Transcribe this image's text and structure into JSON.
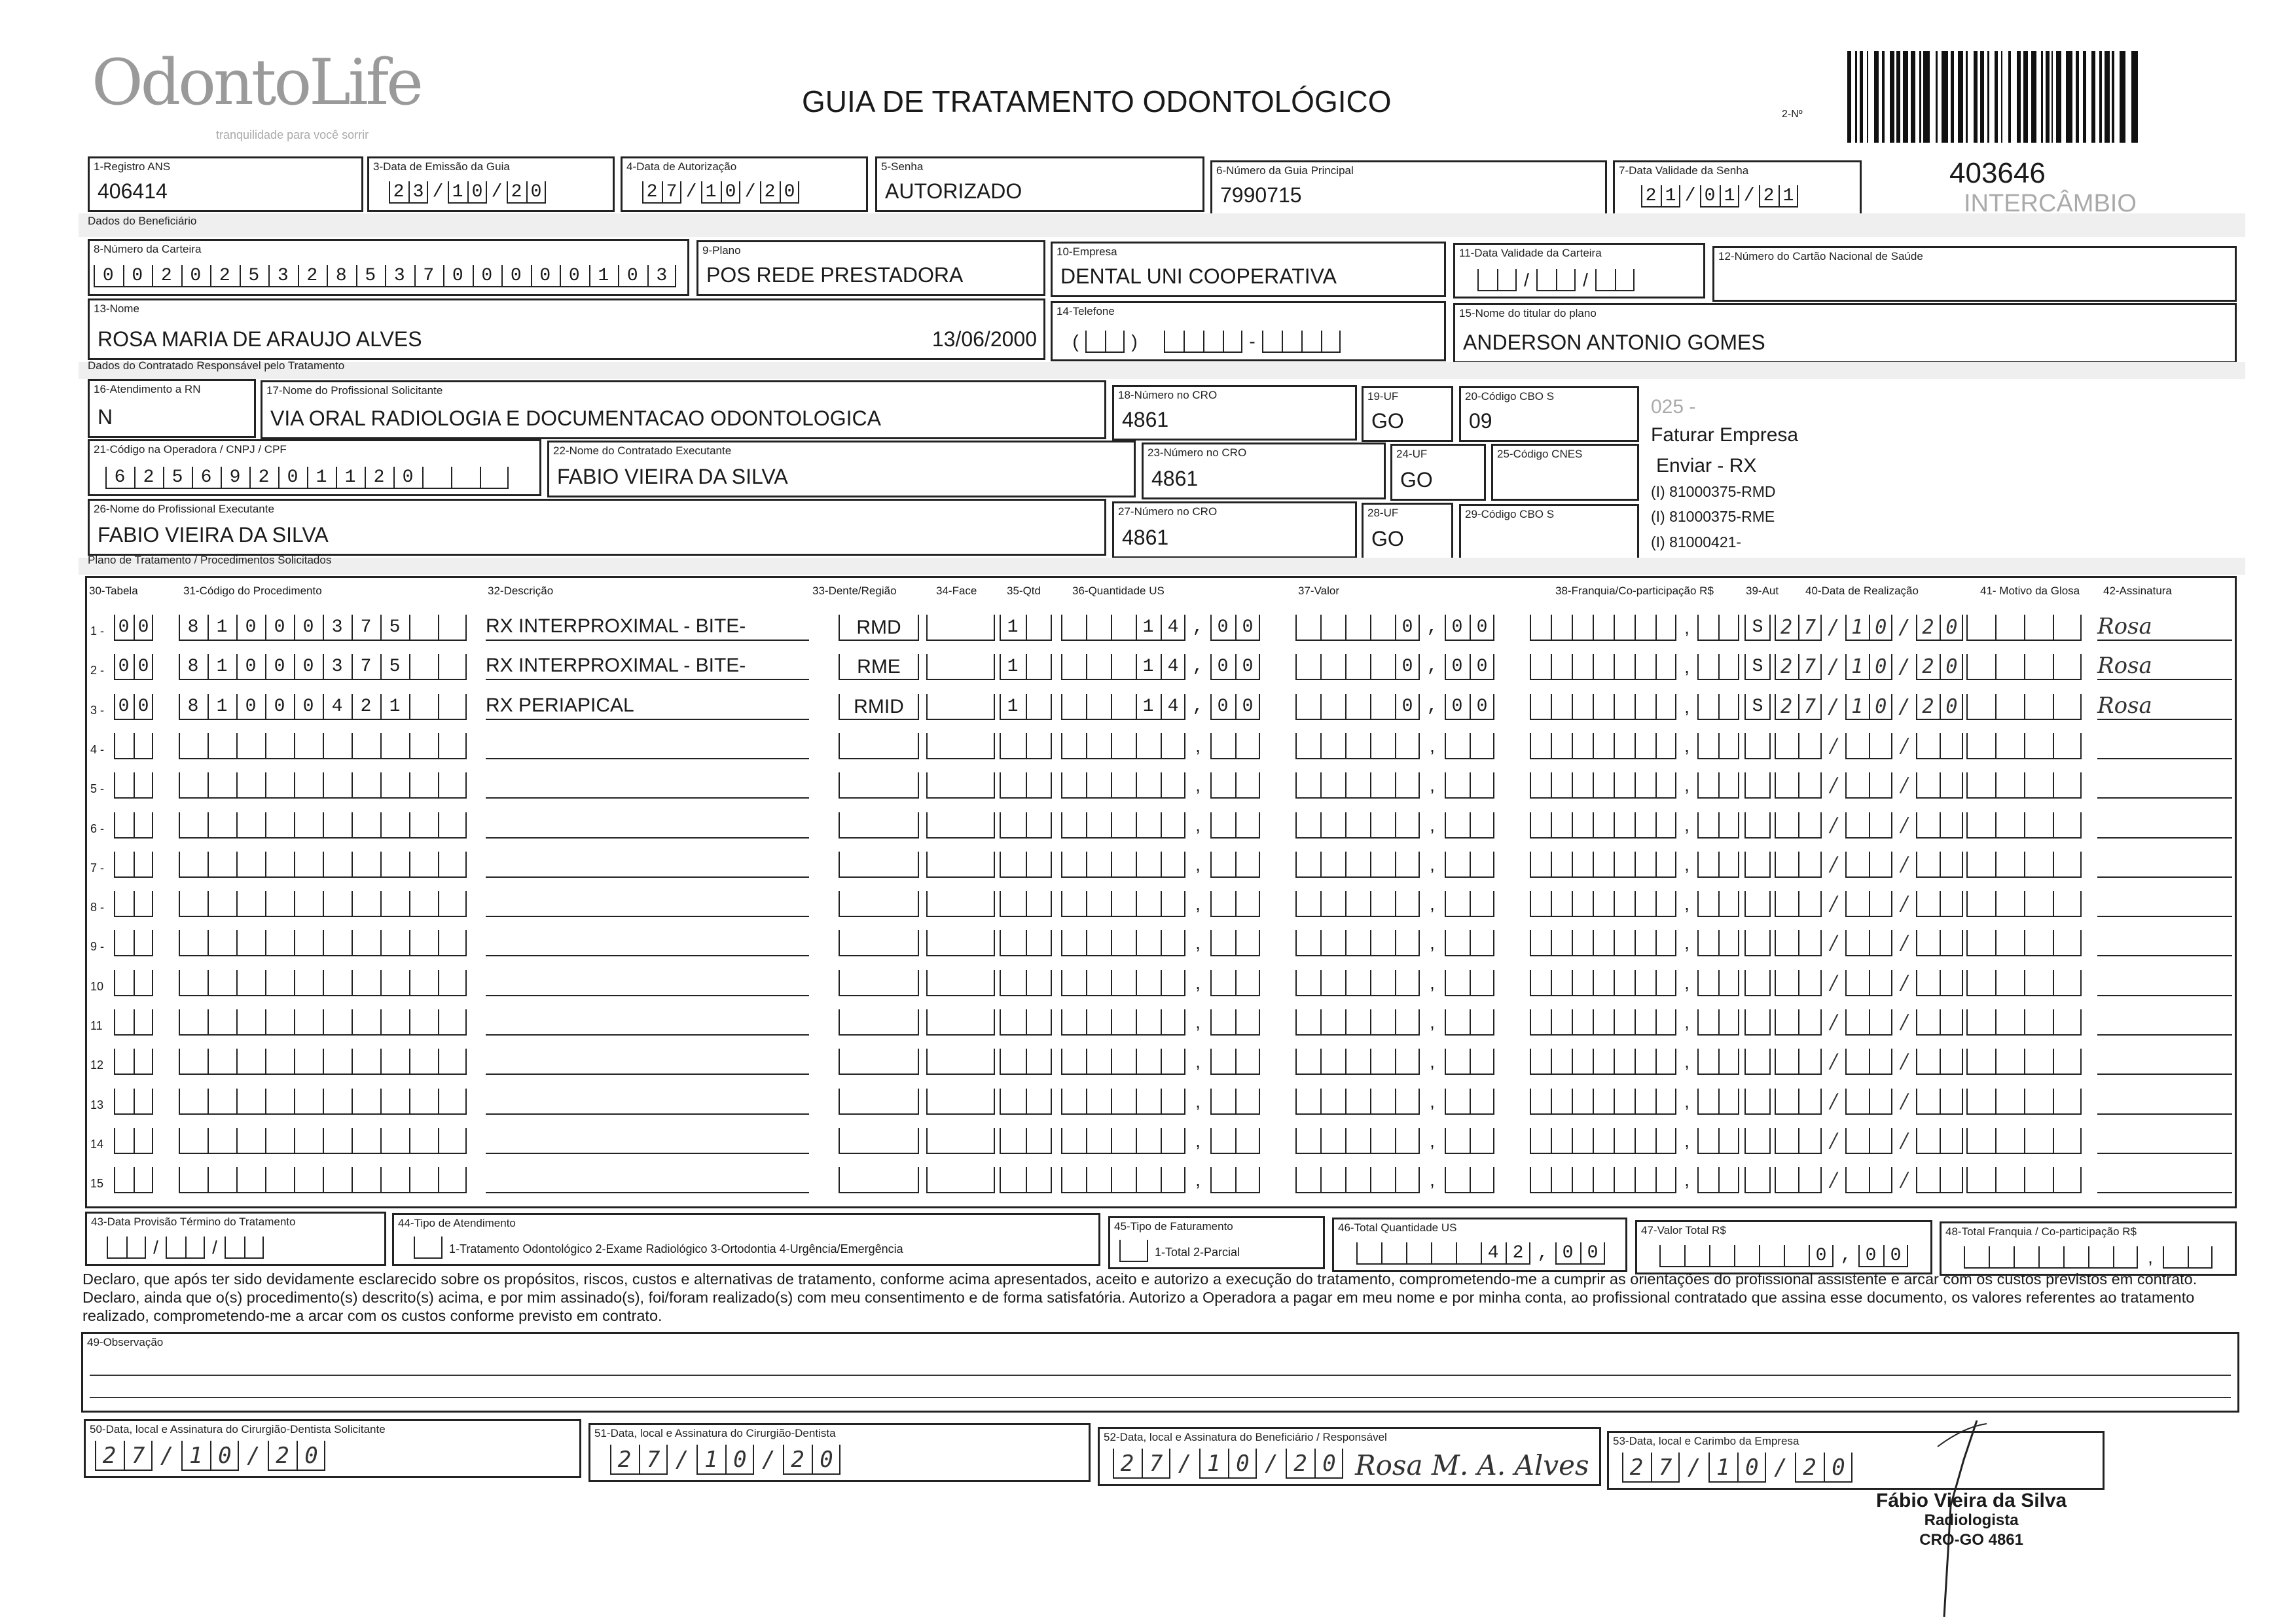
{
  "header": {
    "logo_text": "OdontoLife",
    "logo_tagline": "tranquilidade para você sorrir",
    "title": "GUIA DE TRATAMENTO ODONTOLÓGICO",
    "numero_label": "2-Nº",
    "guia_numero": "403646",
    "intercambio": "INTERCÂMBIO"
  },
  "sections": {
    "beneficiario": "Dados do Beneficiário",
    "contratado": "Dados do Contratado Responsável pelo Tratamento",
    "plano": "Plano de Tratamento / Procedimentos Solicitados"
  },
  "fields": {
    "f1": {
      "label": "1-Registro ANS",
      "value": "406414"
    },
    "f3": {
      "label": "3-Data de Emissão da Guia",
      "value": "23/10/20"
    },
    "f4": {
      "label": "4-Data de Autorização",
      "value": "27/10/20"
    },
    "f5": {
      "label": "5-Senha",
      "value": "AUTORIZADO"
    },
    "f6": {
      "label": "6-Número da Guia Principal",
      "value": "7990715"
    },
    "f7": {
      "label": "7-Data Validade da Senha",
      "value": "21/01/21"
    },
    "f8": {
      "label": "8-Número da Carteira",
      "value": "00202532853700000103"
    },
    "f9": {
      "label": "9-Plano",
      "value": "POS REDE PRESTADORA"
    },
    "f10": {
      "label": "10-Empresa",
      "value": "DENTAL UNI  COOPERATIVA"
    },
    "f11": {
      "label": "11-Data Validade da Carteira",
      "value": ""
    },
    "f12": {
      "label": "12-Número do Cartão Nacional de Saúde",
      "value": ""
    },
    "f13": {
      "label": "13-Nome",
      "value": "ROSA MARIA DE ARAUJO ALVES",
      "birth": "13/06/2000"
    },
    "f14": {
      "label": "14-Telefone",
      "value": ""
    },
    "f15": {
      "label": "15-Nome do titular do plano",
      "value": "ANDERSON ANTONIO GOMES"
    },
    "f16": {
      "label": "16-Atendimento a RN",
      "value": "N"
    },
    "f17": {
      "label": "17-Nome do Profissional Solicitante",
      "value": "VIA ORAL RADIOLOGIA E DOCUMENTACAO ODONTOLOGICA"
    },
    "f18": {
      "label": "18-Número no CRO",
      "value": "4861"
    },
    "f19": {
      "label": "19-UF",
      "value": "GO"
    },
    "f20": {
      "label": "20-Código CBO S",
      "value": "09"
    },
    "f21": {
      "label": "21-Código na Operadora / CNPJ / CPF",
      "value": "62569201120"
    },
    "f22": {
      "label": "22-Nome do Contratado Executante",
      "value": "FABIO VIEIRA DA SILVA"
    },
    "f23": {
      "label": "23-Número no CRO",
      "value": "4861"
    },
    "f24": {
      "label": "24-UF",
      "value": "GO"
    },
    "f25": {
      "label": "25-Código CNES",
      "value": ""
    },
    "f26": {
      "label": "26-Nome do Profissional Executante",
      "value": "FABIO VIEIRA DA SILVA"
    },
    "f27": {
      "label": "27-Número no CRO",
      "value": "4861"
    },
    "f28": {
      "label": "28-UF",
      "value": "GO"
    },
    "f29": {
      "label": "29-Código CBO S",
      "value": ""
    },
    "f43": {
      "label": "43-Data Provisão Término do Tratamento",
      "value": ""
    },
    "f44": {
      "label": "44-Tipo de Atendimento",
      "value": "",
      "options": "1-Tratamento Odontológico  2-Exame Radiológico  3-Ortodontia  4-Urgência/Emergência"
    },
    "f45": {
      "label": "45-Tipo de Faturamento",
      "value": "",
      "options": "1-Total  2-Parcial"
    },
    "f46": {
      "label": "46-Total Quantidade US",
      "value": "42,00"
    },
    "f47": {
      "label": "47-Valor Total R$",
      "value": "0,00"
    },
    "f48": {
      "label": "48-Total Franquia / Co-participação R$",
      "value": ""
    },
    "f49": {
      "label": "49-Observação",
      "value": ""
    },
    "f50": {
      "label": "50-Data, local e Assinatura do Cirurgião-Dentista Solicitante",
      "value": "27/10/20"
    },
    "f51": {
      "label": "51-Data, local e Assinatura do Cirurgião-Dentista",
      "value": "27/10/20"
    },
    "f52": {
      "label": "52-Data, local e Assinatura do Beneficiário / Responsável",
      "value": "27/10/20",
      "signature": "Rosa M. A. Alves"
    },
    "f53": {
      "label": "53-Data, local e Carimbo da Empresa",
      "value": "27/10/20"
    }
  },
  "notes": [
    "025 -",
    "Faturar Empresa",
    "Enviar - RX",
    "(I) 81000375-RMD",
    "(I) 81000375-RME",
    "(I) 81000421-"
  ],
  "procedures": {
    "headers": [
      "30-Tabela",
      "31-Código do Procedimento",
      "32-Descrição",
      "33-Dente/Região",
      "34-Face",
      "35-Qtd",
      "36-Quantidade US",
      "37-Valor",
      "38-Franquia/Co-participação R$",
      "39-Aut",
      "40-Data de Realização",
      "41- Motivo da Glosa",
      "42-Assinatura"
    ],
    "rows": [
      {
        "n": "1 -",
        "tabela": "00",
        "codigo": "81000375",
        "descricao": "RX INTERPROXIMAL - BITE-",
        "dente": "RMD",
        "face": "",
        "qtd": "1",
        "qtd_us": "14,00",
        "valor": "0,00",
        "franquia": "",
        "aut": "S",
        "data": "27/10/20",
        "glosa": "",
        "assinatura": "Rosa"
      },
      {
        "n": "2 -",
        "tabela": "00",
        "codigo": "81000375",
        "descricao": "RX INTERPROXIMAL - BITE-",
        "dente": "RME",
        "face": "",
        "qtd": "1",
        "qtd_us": "14,00",
        "valor": "0,00",
        "franquia": "",
        "aut": "S",
        "data": "27/10/20",
        "glosa": "",
        "assinatura": "Rosa"
      },
      {
        "n": "3 -",
        "tabela": "00",
        "codigo": "81000421",
        "descricao": "RX PERIAPICAL",
        "dente": "RMID",
        "face": "",
        "qtd": "1",
        "qtd_us": "14,00",
        "valor": "0,00",
        "franquia": "",
        "aut": "S",
        "data": "27/10/20",
        "glosa": "",
        "assinatura": "Rosa"
      },
      {
        "n": "4 -"
      },
      {
        "n": "5 -"
      },
      {
        "n": "6 -"
      },
      {
        "n": "7 -"
      },
      {
        "n": "8 -"
      },
      {
        "n": "9 -"
      },
      {
        "n": "10"
      },
      {
        "n": "11"
      },
      {
        "n": "12"
      },
      {
        "n": "13"
      },
      {
        "n": "14"
      },
      {
        "n": "15"
      }
    ]
  },
  "declaration": "Declaro, que após ter sido devidamente esclarecido sobre os propósitos, riscos, custos e alternativas de tratamento, conforme acima apresentados, aceito e autorizo a execução do tratamento, comprometendo-me a cumprir as orientações do profissional assistente e arcar com os custos previstos em contrato. Declaro, ainda que o(s) procedimento(s) descrito(s) acima, e por mim assinado(s), foi/foram realizado(s) com meu consentimento e de forma satisfatória. Autorizo a Operadora a pagar em meu nome e por minha conta, ao profissional contratado que assina esse documento, os valores referentes ao tratamento realizado, comprometendo-me a arcar com os custos conforme previsto em contrato.",
  "stamp": {
    "name": "Fábio Vieira da Silva",
    "role": "Radiologista",
    "cro": "CRO-GO 4861"
  }
}
